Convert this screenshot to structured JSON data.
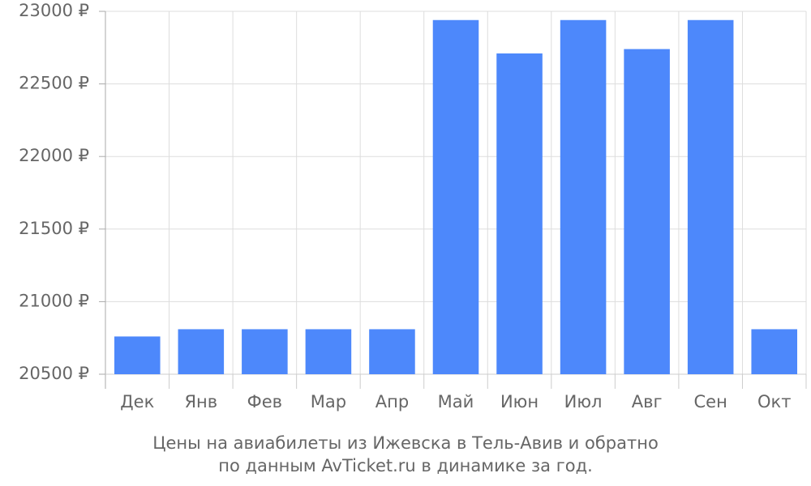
{
  "chart_data": {
    "type": "bar",
    "title": "Цены на авиабилеты из Ижевска в Тель-Авив и обратно",
    "subtitle": "по данным AvTicket.ru в динамике за год.",
    "categories": [
      "Дек",
      "Янв",
      "Фев",
      "Мар",
      "Апр",
      "Май",
      "Июн",
      "Июл",
      "Авг",
      "Сен",
      "Окт"
    ],
    "values": [
      20760,
      20810,
      20810,
      20810,
      20810,
      22940,
      22710,
      22940,
      22740,
      22940,
      20810
    ],
    "color": "#4d88fb",
    "ylim": [
      20500,
      23000
    ],
    "yticks": [
      {
        "value": 20500,
        "label": "20500 ₽"
      },
      {
        "value": 21000,
        "label": "21000 ₽"
      },
      {
        "value": 21500,
        "label": "21500 ₽"
      },
      {
        "value": 22000,
        "label": "22000 ₽"
      },
      {
        "value": 22500,
        "label": "22500 ₽"
      },
      {
        "value": 23000,
        "label": "23000 ₽"
      }
    ],
    "grid": true
  }
}
